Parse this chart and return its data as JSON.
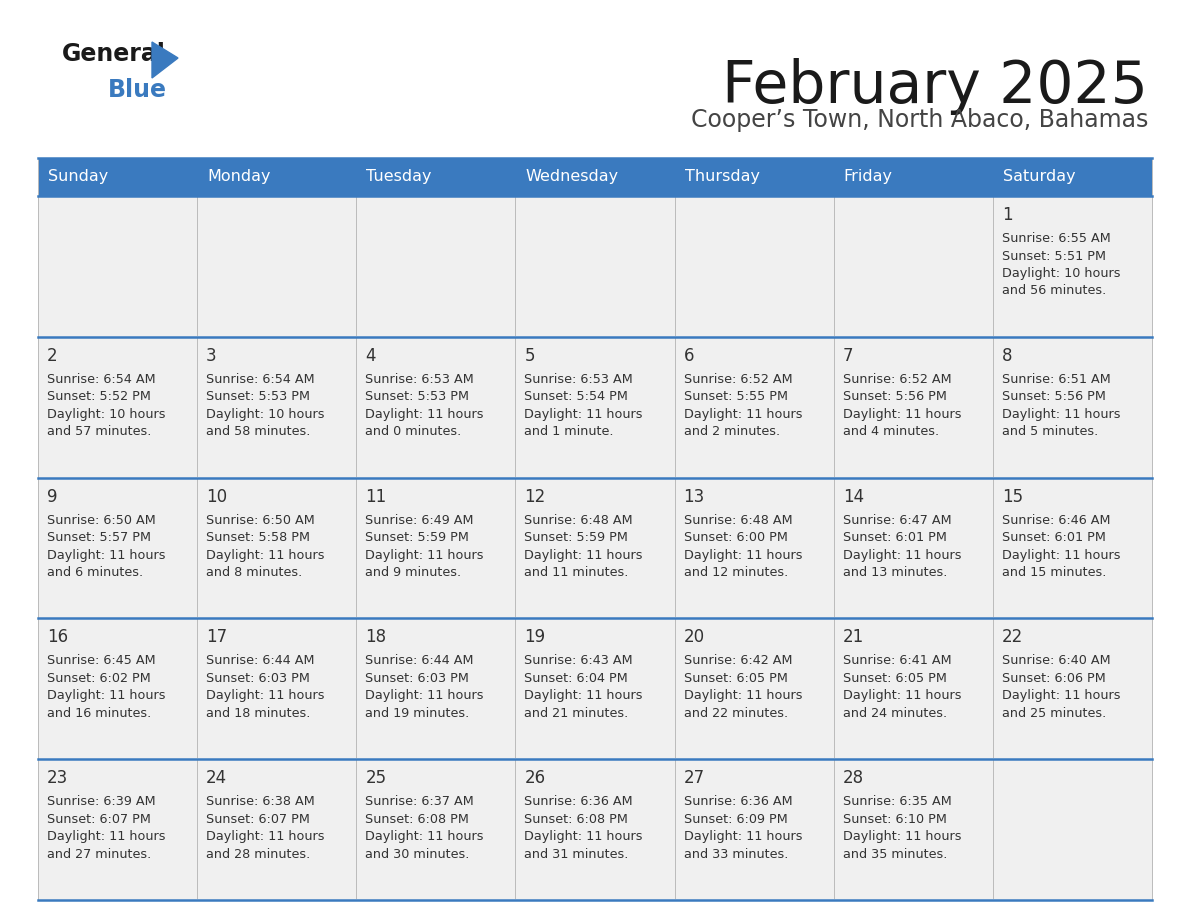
{
  "title": "February 2025",
  "subtitle": "Cooper’s Town, North Abaco, Bahamas",
  "days_of_week": [
    "Sunday",
    "Monday",
    "Tuesday",
    "Wednesday",
    "Thursday",
    "Friday",
    "Saturday"
  ],
  "header_bg": "#3a7abf",
  "header_text": "#ffffff",
  "row_bg": "#f0f0f0",
  "border_color": "#3a7abf",
  "title_color": "#1a1a1a",
  "subtitle_color": "#444444",
  "cell_text_color": "#333333",
  "day_num_color": "#333333",
  "divider_color": "#bbbbbb",
  "calendar": [
    [
      null,
      null,
      null,
      null,
      null,
      null,
      {
        "day": 1,
        "sunrise": "6:55 AM",
        "sunset": "5:51 PM",
        "daylight": "10 hours and 56 minutes."
      }
    ],
    [
      {
        "day": 2,
        "sunrise": "6:54 AM",
        "sunset": "5:52 PM",
        "daylight": "10 hours and 57 minutes."
      },
      {
        "day": 3,
        "sunrise": "6:54 AM",
        "sunset": "5:53 PM",
        "daylight": "10 hours and 58 minutes."
      },
      {
        "day": 4,
        "sunrise": "6:53 AM",
        "sunset": "5:53 PM",
        "daylight": "11 hours and 0 minutes."
      },
      {
        "day": 5,
        "sunrise": "6:53 AM",
        "sunset": "5:54 PM",
        "daylight": "11 hours and 1 minute."
      },
      {
        "day": 6,
        "sunrise": "6:52 AM",
        "sunset": "5:55 PM",
        "daylight": "11 hours and 2 minutes."
      },
      {
        "day": 7,
        "sunrise": "6:52 AM",
        "sunset": "5:56 PM",
        "daylight": "11 hours and 4 minutes."
      },
      {
        "day": 8,
        "sunrise": "6:51 AM",
        "sunset": "5:56 PM",
        "daylight": "11 hours and 5 minutes."
      }
    ],
    [
      {
        "day": 9,
        "sunrise": "6:50 AM",
        "sunset": "5:57 PM",
        "daylight": "11 hours and 6 minutes."
      },
      {
        "day": 10,
        "sunrise": "6:50 AM",
        "sunset": "5:58 PM",
        "daylight": "11 hours and 8 minutes."
      },
      {
        "day": 11,
        "sunrise": "6:49 AM",
        "sunset": "5:59 PM",
        "daylight": "11 hours and 9 minutes."
      },
      {
        "day": 12,
        "sunrise": "6:48 AM",
        "sunset": "5:59 PM",
        "daylight": "11 hours and 11 minutes."
      },
      {
        "day": 13,
        "sunrise": "6:48 AM",
        "sunset": "6:00 PM",
        "daylight": "11 hours and 12 minutes."
      },
      {
        "day": 14,
        "sunrise": "6:47 AM",
        "sunset": "6:01 PM",
        "daylight": "11 hours and 13 minutes."
      },
      {
        "day": 15,
        "sunrise": "6:46 AM",
        "sunset": "6:01 PM",
        "daylight": "11 hours and 15 minutes."
      }
    ],
    [
      {
        "day": 16,
        "sunrise": "6:45 AM",
        "sunset": "6:02 PM",
        "daylight": "11 hours and 16 minutes."
      },
      {
        "day": 17,
        "sunrise": "6:44 AM",
        "sunset": "6:03 PM",
        "daylight": "11 hours and 18 minutes."
      },
      {
        "day": 18,
        "sunrise": "6:44 AM",
        "sunset": "6:03 PM",
        "daylight": "11 hours and 19 minutes."
      },
      {
        "day": 19,
        "sunrise": "6:43 AM",
        "sunset": "6:04 PM",
        "daylight": "11 hours and 21 minutes."
      },
      {
        "day": 20,
        "sunrise": "6:42 AM",
        "sunset": "6:05 PM",
        "daylight": "11 hours and 22 minutes."
      },
      {
        "day": 21,
        "sunrise": "6:41 AM",
        "sunset": "6:05 PM",
        "daylight": "11 hours and 24 minutes."
      },
      {
        "day": 22,
        "sunrise": "6:40 AM",
        "sunset": "6:06 PM",
        "daylight": "11 hours and 25 minutes."
      }
    ],
    [
      {
        "day": 23,
        "sunrise": "6:39 AM",
        "sunset": "6:07 PM",
        "daylight": "11 hours and 27 minutes."
      },
      {
        "day": 24,
        "sunrise": "6:38 AM",
        "sunset": "6:07 PM",
        "daylight": "11 hours and 28 minutes."
      },
      {
        "day": 25,
        "sunrise": "6:37 AM",
        "sunset": "6:08 PM",
        "daylight": "11 hours and 30 minutes."
      },
      {
        "day": 26,
        "sunrise": "6:36 AM",
        "sunset": "6:08 PM",
        "daylight": "11 hours and 31 minutes."
      },
      {
        "day": 27,
        "sunrise": "6:36 AM",
        "sunset": "6:09 PM",
        "daylight": "11 hours and 33 minutes."
      },
      {
        "day": 28,
        "sunrise": "6:35 AM",
        "sunset": "6:10 PM",
        "daylight": "11 hours and 35 minutes."
      },
      null
    ]
  ]
}
